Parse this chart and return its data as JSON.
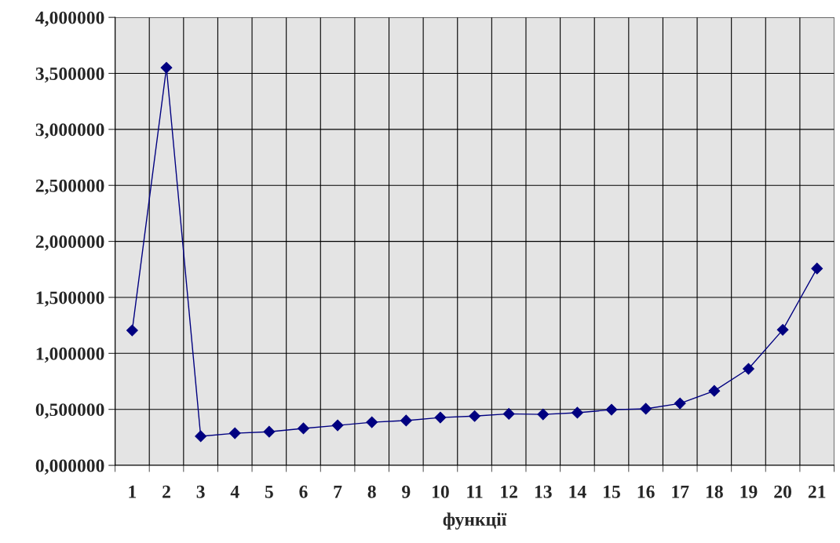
{
  "chart_data": {
    "type": "line",
    "xlabel": "функції",
    "categories": [
      "1",
      "2",
      "3",
      "4",
      "5",
      "6",
      "7",
      "8",
      "9",
      "10",
      "11",
      "12",
      "13",
      "14",
      "15",
      "16",
      "17",
      "18",
      "19",
      "20",
      "21"
    ],
    "series": [
      {
        "color": "#000080",
        "values": [
          1.205,
          3.55,
          0.26,
          0.287,
          0.3,
          0.33,
          0.357,
          0.385,
          0.4,
          0.427,
          0.44,
          0.46,
          0.455,
          0.47,
          0.497,
          0.505,
          0.553,
          0.665,
          0.862,
          1.21,
          1.758
        ]
      }
    ],
    "ylim": [
      0,
      4
    ],
    "yticks": [
      {
        "value": 0,
        "label": "0,000000"
      },
      {
        "value": 0.5,
        "label": "0,500000"
      },
      {
        "value": 1,
        "label": "1,000000"
      },
      {
        "value": 1.5,
        "label": "1,500000"
      },
      {
        "value": 2,
        "label": "2,000000"
      },
      {
        "value": 2.5,
        "label": "2,500000"
      },
      {
        "value": 3,
        "label": "3,000000"
      },
      {
        "value": 3.5,
        "label": "3,500000"
      },
      {
        "value": 4,
        "label": "4,000000"
      }
    ],
    "grid": true,
    "marker": "diamond",
    "line_style": "solid"
  }
}
